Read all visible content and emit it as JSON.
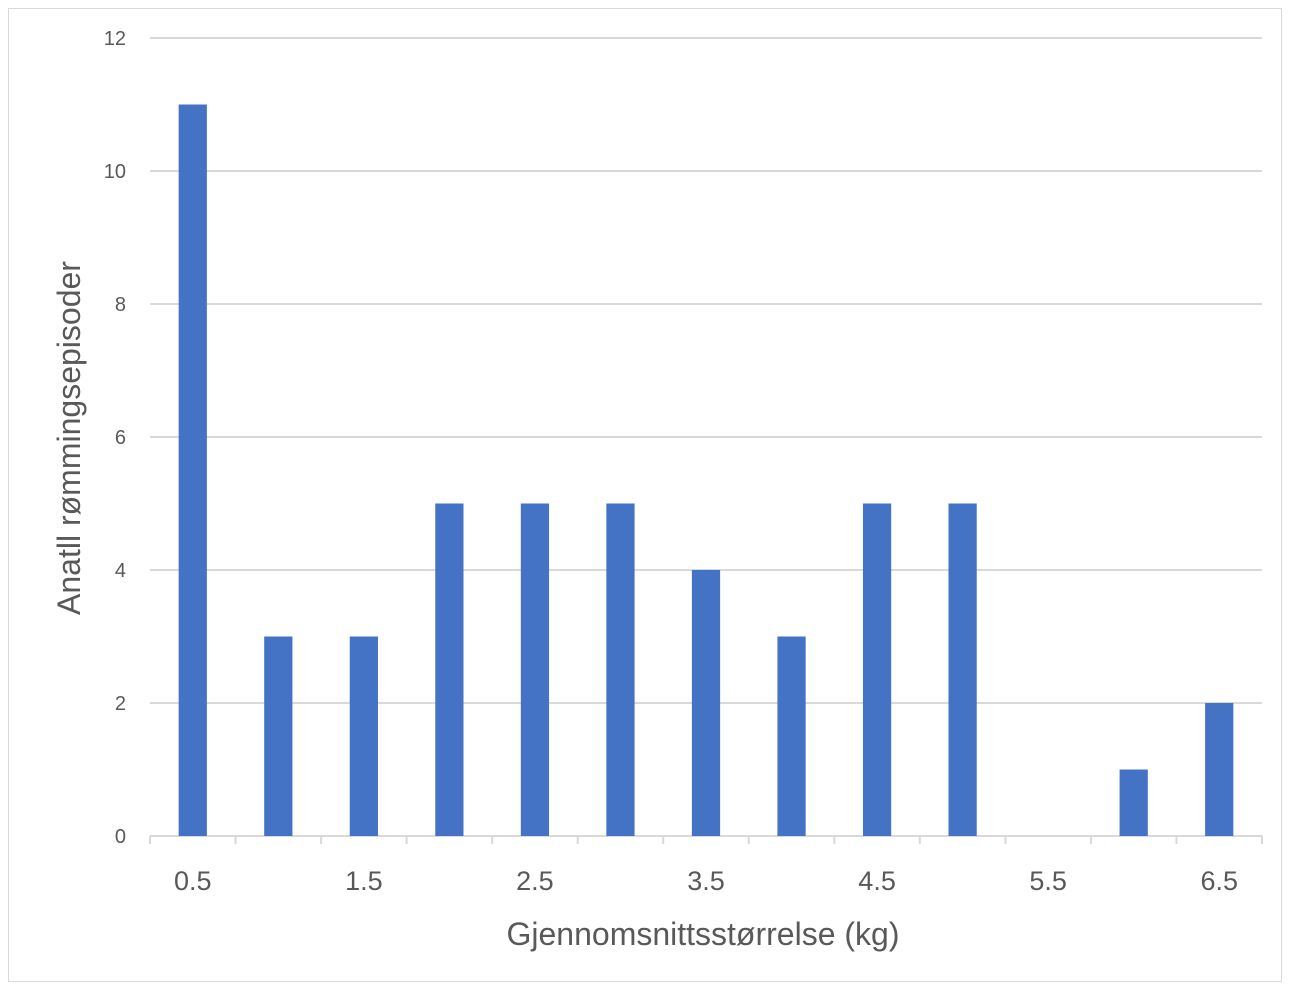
{
  "chart_data": {
    "type": "bar",
    "title": "",
    "xlabel": "Gjennomsnittsstørrelse (kg)",
    "ylabel": "Anatll rømmingsepisoder",
    "categories": [
      "0.5",
      "1",
      "1.5",
      "2",
      "2.5",
      "3",
      "3.5",
      "4",
      "4.5",
      "5",
      "5.5",
      "6",
      "6.5"
    ],
    "x_tick_labels": [
      "0.5",
      "1.5",
      "2.5",
      "3.5",
      "4.5",
      "5.5",
      "6.5"
    ],
    "values": [
      11,
      3,
      3,
      5,
      5,
      5,
      4,
      3,
      5,
      5,
      0,
      1,
      2
    ],
    "ylim": [
      0,
      12
    ],
    "y_ticks": [
      0,
      2,
      4,
      6,
      8,
      10,
      12
    ],
    "grid": "horizontal",
    "legend": "none",
    "bar_color": "#4472C4",
    "gridline_color": "#d9d9d9"
  }
}
